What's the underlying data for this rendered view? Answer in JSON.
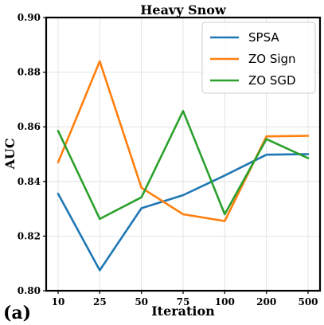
{
  "chart_data": {
    "type": "line",
    "title": "Heavy Snow",
    "panel_label": "(a)",
    "xlabel": "Iteration",
    "ylabel": "AUC",
    "categories": [
      "10",
      "25",
      "50",
      "75",
      "100",
      "200",
      "500"
    ],
    "ylim": [
      0.8,
      0.9
    ],
    "yticks": [
      "0.80",
      "0.82",
      "0.84",
      "0.86",
      "0.88",
      "0.90"
    ],
    "grid": true,
    "legend_position": "top-right",
    "series": [
      {
        "name": "SPSA",
        "color": "#1f77b4",
        "values": [
          0.8355,
          0.8075,
          0.8302,
          0.835,
          0.8422,
          0.8498,
          0.85
        ]
      },
      {
        "name": "ZO Sign",
        "color": "#ff7f0e",
        "values": [
          0.847,
          0.884,
          0.8377,
          0.828,
          0.8255,
          0.8565,
          0.8567
        ]
      },
      {
        "name": "ZO SGD",
        "color": "#2ca02c",
        "values": [
          0.8585,
          0.8263,
          0.8342,
          0.8658,
          0.828,
          0.8555,
          0.8485
        ]
      }
    ]
  }
}
